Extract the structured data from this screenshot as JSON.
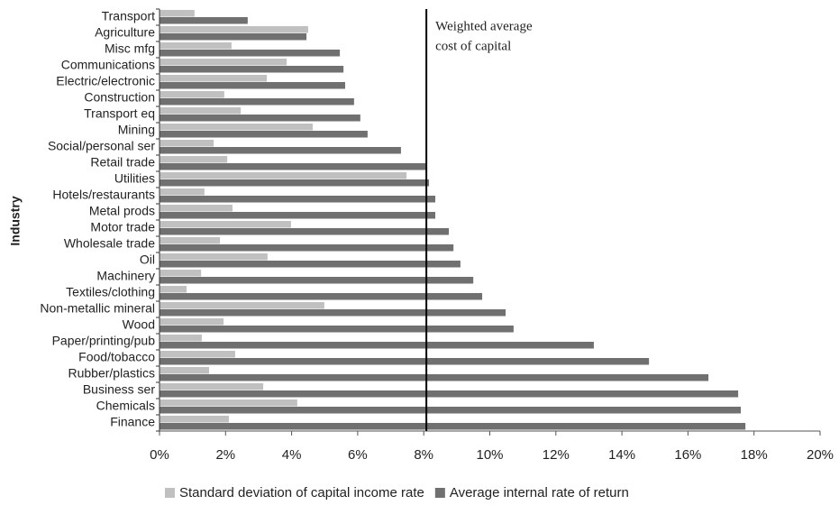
{
  "chart_data": {
    "type": "hbar",
    "ylabel": "Industry",
    "categories": [
      "Transport",
      "Agriculture",
      "Misc mfg",
      "Communications",
      "Electric/electronic",
      "Construction",
      "Transport eq",
      "Mining",
      "Social/personal ser",
      "Retail trade",
      "Utilities",
      "Hotels/restaurants",
      "Metal prods",
      "Motor trade",
      "Wholesale trade",
      "Oil",
      "Machinery",
      "Textiles/clothing",
      "Non-metallic mineral",
      "Wood",
      "Paper/printing/pub",
      "Food/tobacco",
      "Rubber/plastics",
      "Business ser",
      "Chemicals",
      "Finance"
    ],
    "series": [
      {
        "name": "Standard deviation of capital income rate",
        "color": "#c0c0c0",
        "values": [
          1.06,
          4.5,
          2.18,
          3.85,
          3.25,
          1.96,
          2.46,
          4.64,
          1.64,
          2.05,
          7.48,
          1.36,
          2.21,
          3.98,
          1.83,
          3.27,
          1.26,
          0.82,
          4.99,
          1.94,
          1.28,
          2.29,
          1.5,
          3.14,
          4.17,
          2.1
        ]
      },
      {
        "name": "Average internal rate of return",
        "color": "#707070",
        "values": [
          2.67,
          4.45,
          5.46,
          5.57,
          5.62,
          5.89,
          6.08,
          6.3,
          7.31,
          8.08,
          8.16,
          8.35,
          8.35,
          8.76,
          8.9,
          9.11,
          9.5,
          9.77,
          10.48,
          10.72,
          13.15,
          14.82,
          16.62,
          17.52,
          17.6,
          17.74
        ]
      }
    ],
    "xlim": [
      0,
      20
    ],
    "xticks": [
      {
        "value": 0,
        "label": "0%"
      },
      {
        "value": 2,
        "label": "2%"
      },
      {
        "value": 4,
        "label": "4%"
      },
      {
        "value": 6,
        "label": "6%"
      },
      {
        "value": 8,
        "label": "8%"
      },
      {
        "value": 10,
        "label": "10%"
      },
      {
        "value": 12,
        "label": "12%"
      },
      {
        "value": 14,
        "label": "14%"
      },
      {
        "value": 16,
        "label": "16%"
      },
      {
        "value": 18,
        "label": "18%"
      },
      {
        "value": 20,
        "label": "20%"
      }
    ],
    "reference_line": {
      "value": 8.08,
      "lines": [
        "Weighted average",
        "cost of capital"
      ],
      "color": "#000000"
    },
    "legend": "bottom"
  }
}
